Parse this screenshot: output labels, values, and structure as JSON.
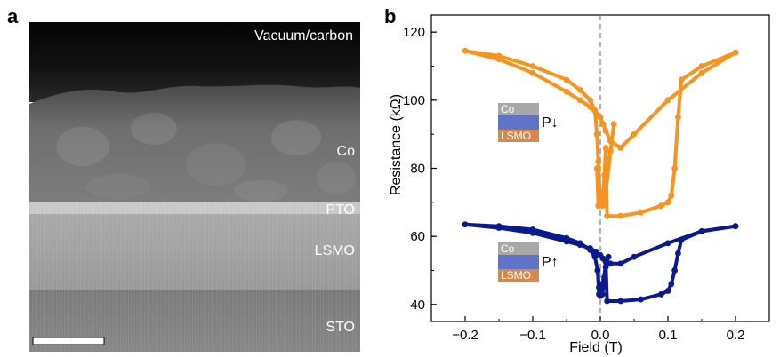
{
  "panel_a": {
    "letter": "a",
    "labels": {
      "vacuum": "Vacuum/carbon",
      "co": "Co",
      "pto": "PTO",
      "lsmo": "LSMO",
      "sto": "STO"
    }
  },
  "panel_b": {
    "letter": "b"
  },
  "chart_data": {
    "type": "scatter",
    "title": "",
    "xlabel": "Field (T)",
    "ylabel": "Resistance (kΩ)",
    "xlim": [
      -0.25,
      0.25
    ],
    "ylim": [
      35,
      125
    ],
    "xticks": [
      -0.2,
      -0.1,
      0.0,
      0.1,
      0.2
    ],
    "xtick_labels": [
      "−0.2",
      "−0.1",
      "0.0",
      "0.1",
      "0.2"
    ],
    "yticks": [
      40,
      60,
      80,
      100,
      120
    ],
    "ytick_labels": [
      "40",
      "60",
      "80",
      "100",
      "120"
    ],
    "grid": false,
    "reference_line_x": 0.0,
    "series": [
      {
        "color": "#f7931e",
        "branches": [
          {
            "x": [
              -0.2,
              -0.15,
              -0.1,
              -0.05,
              -0.03,
              -0.015,
              -0.008,
              -0.005,
              -0.003,
              0.0,
              0.003,
              0.008,
              0.015,
              0.02
            ],
            "y": [
              114.5,
              113,
              110,
              106,
              103,
              100,
              97,
              90,
              82,
              70,
              69,
              73,
              85,
              93
            ]
          },
          {
            "x": [
              -0.2,
              -0.15,
              -0.1,
              -0.05,
              -0.03,
              -0.015,
              -0.006,
              0.0,
              0.004,
              0.008,
              0.015,
              0.03,
              0.05,
              0.1,
              0.15,
              0.2
            ],
            "y": [
              114.5,
              112,
              108,
              102.5,
              100,
              98,
              96,
              95,
              93,
              91,
              88,
              86,
              90,
              100,
              108,
              114
            ]
          },
          {
            "x": [
              -0.005,
              -0.003,
              0.003,
              0.006,
              0.008,
              0.01,
              0.03,
              0.06,
              0.09,
              0.1,
              0.105,
              0.11,
              0.115,
              0.12,
              0.15,
              0.2
            ],
            "y": [
              80,
              69,
              70,
              78,
              86,
              66,
              66,
              67,
              69,
              70,
              72,
              80,
              95,
              106,
              110,
              114
            ]
          }
        ],
        "inset": {
          "top": "Co",
          "bottom": "LSMO",
          "label": "P↓"
        }
      },
      {
        "color": "#0a1a8c",
        "branches": [
          {
            "x": [
              -0.2,
              -0.15,
              -0.1,
              -0.05,
              -0.03,
              -0.015,
              -0.008,
              -0.004,
              -0.002,
              0.0,
              0.003,
              0.008,
              0.012
            ],
            "y": [
              63.5,
              63,
              62,
              59.5,
              58,
              56,
              54,
              50,
              45,
              42.5,
              46,
              51,
              54
            ]
          },
          {
            "x": [
              -0.2,
              -0.15,
              -0.1,
              -0.05,
              -0.03,
              -0.015,
              -0.006,
              0.0,
              0.004,
              0.008,
              0.015,
              0.03,
              0.05,
              0.1,
              0.15,
              0.2
            ],
            "y": [
              63.5,
              62.5,
              61,
              58.5,
              57.5,
              56.5,
              55.5,
              54.5,
              53.5,
              52.5,
              52,
              52,
              54,
              58,
              61.5,
              63
            ]
          },
          {
            "x": [
              -0.004,
              -0.002,
              0.003,
              0.006,
              0.008,
              0.01,
              0.03,
              0.06,
              0.09,
              0.1,
              0.105,
              0.11,
              0.115,
              0.12,
              0.15,
              0.2
            ],
            "y": [
              50,
              43,
              43,
              48,
              53,
              41,
              41,
              41.5,
              43,
              44,
              46,
              50,
              55,
              59,
              61.5,
              63
            ]
          }
        ],
        "inset": {
          "top": "Co",
          "bottom": "LSMO",
          "label": "P↑"
        }
      }
    ]
  },
  "colors": {
    "co_layer": "#a8a8a8",
    "pto_layer": "#5f73c8",
    "lsmo_layer": "#d4894f",
    "dashed_line": "#8a8a8a",
    "orange_series": "#f7931e",
    "blue_series": "#0a1a8c"
  }
}
